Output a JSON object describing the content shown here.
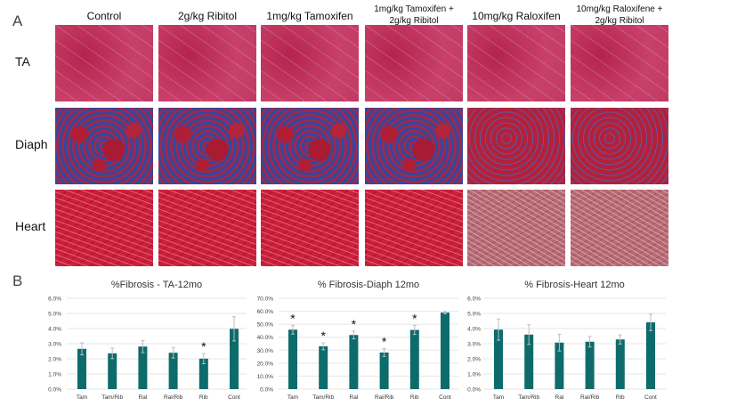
{
  "panel_a": {
    "label": "A",
    "columns": [
      "Control",
      "2g/kg Ribitol",
      "1mg/kg Tamoxifen",
      "1mg/kg Tamoxifen +\n2g/kg Ribitol",
      "10mg/kg Raloxifen",
      "10mg/kg Raloxifene +\n2g/kg Ribitol"
    ],
    "rows": [
      "TA",
      "Diaph",
      "Heart"
    ]
  },
  "panel_b": {
    "label": "B"
  },
  "colors": {
    "bar": "#0e6b6b",
    "error": "#bfbfbf",
    "grid": "#e6e6e6"
  },
  "chart_data": [
    {
      "type": "bar",
      "title": "%Fibrosis - TA-12mo",
      "categories": [
        "Tam",
        "Tam/Rib",
        "Ral",
        "Ral/Rib",
        "Rib",
        "Cont"
      ],
      "values": [
        2.66,
        2.36,
        2.81,
        2.4,
        2.01,
        3.98
      ],
      "errors": [
        0.4,
        0.35,
        0.4,
        0.35,
        0.33,
        0.8
      ],
      "significant": [
        false,
        false,
        false,
        false,
        true,
        false
      ],
      "ylim": [
        0,
        6
      ],
      "yticks": [
        "0.0%",
        "1.0%",
        "2.0%",
        "3.0%",
        "4.0%",
        "5.0%",
        "6.0%"
      ],
      "grid": true
    },
    {
      "type": "bar",
      "title": "% Fibrosis-Diaph 12mo",
      "categories": [
        "Tam",
        "Tam/Rib",
        "Ral",
        "Ral/Rib",
        "Rib",
        "Cont"
      ],
      "values": [
        45.8,
        33.0,
        41.7,
        28.2,
        45.6,
        59.0
      ],
      "errors": [
        3.4,
        2.7,
        3.0,
        3.0,
        3.5,
        1.0
      ],
      "significant": [
        true,
        true,
        true,
        true,
        true,
        false
      ],
      "ylim": [
        0,
        70
      ],
      "yticks": [
        "0.0%",
        "10.0%",
        "20.0%",
        "30.0%",
        "40.0%",
        "50.0%",
        "60.0%",
        "70.0%"
      ],
      "grid": true
    },
    {
      "type": "bar",
      "title": "% Fibrosis-Heart 12mo",
      "categories": [
        "Tam",
        "Tam/Rib",
        "Ral",
        "Ral/Rib",
        "Rib",
        "Cont"
      ],
      "values": [
        3.93,
        3.6,
        3.07,
        3.13,
        3.28,
        4.41
      ],
      "errors": [
        0.7,
        0.65,
        0.55,
        0.35,
        0.3,
        0.55
      ],
      "significant": [
        false,
        false,
        false,
        false,
        false,
        false
      ],
      "ylim": [
        0,
        6
      ],
      "yticks": [
        "0.0%",
        "1.0%",
        "2.0%",
        "3.0%",
        "4.0%",
        "5.0%",
        "6.0%"
      ],
      "grid": true
    }
  ]
}
